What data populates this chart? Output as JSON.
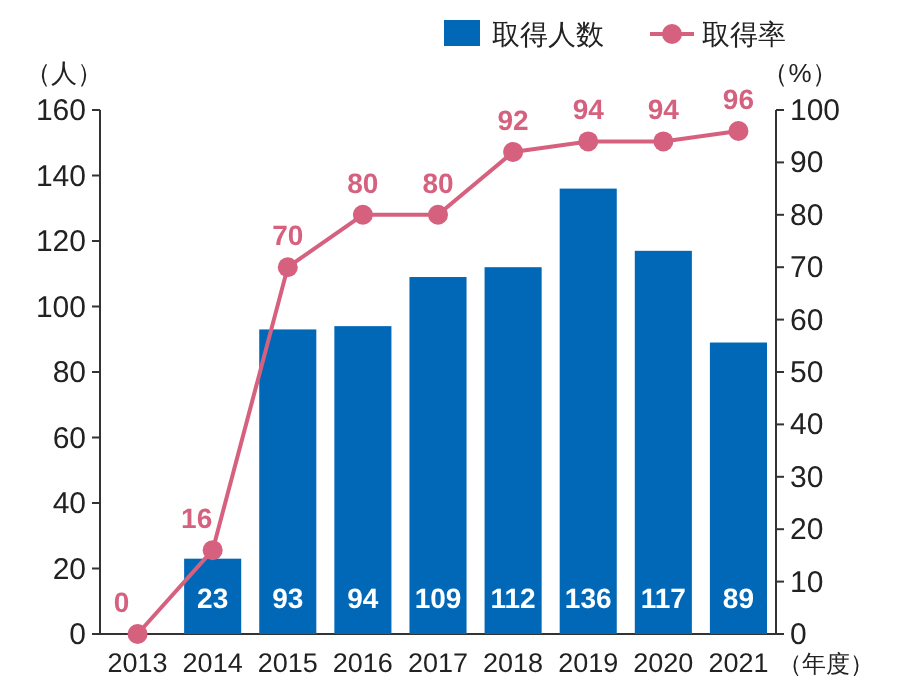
{
  "chart_data": {
    "type": "bar",
    "categories": [
      "2013",
      "2014",
      "2015",
      "2016",
      "2017",
      "2018",
      "2019",
      "2020",
      "2021"
    ],
    "series": [
      {
        "name": "取得人数",
        "color": "#0068b7",
        "values": [
          null,
          23,
          93,
          94,
          109,
          112,
          136,
          117,
          89
        ]
      },
      {
        "name": "取得率",
        "type": "line",
        "axis": "y2",
        "color": "#d6617f",
        "marker": "circle",
        "values": [
          0,
          16,
          70,
          80,
          80,
          92,
          94,
          94,
          96
        ]
      }
    ],
    "ylabel": "（人）",
    "y2label": "（%）",
    "xlabel": "（年度）",
    "ylim": [
      0,
      160
    ],
    "yticks": [
      0,
      20,
      40,
      60,
      80,
      100,
      120,
      140,
      160
    ],
    "y2lim": [
      0,
      100
    ],
    "y2ticks": [
      0,
      10,
      20,
      30,
      40,
      50,
      60,
      70,
      80,
      90,
      100
    ],
    "data_labels": true,
    "legend": "top right",
    "grid": false
  }
}
